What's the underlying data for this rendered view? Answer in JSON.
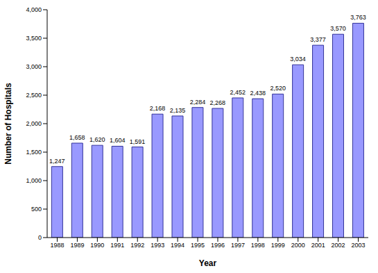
{
  "chart_data": {
    "type": "bar",
    "x_label": "Year",
    "y_label": "Number of Hospitals",
    "categories": [
      "1988",
      "1989",
      "1990",
      "1991",
      "1992",
      "1993",
      "1994",
      "1995",
      "1996",
      "1997",
      "1998",
      "1999",
      "2000",
      "2001",
      "2002",
      "2003"
    ],
    "values": [
      1247,
      1658,
      1620,
      1604,
      1591,
      2168,
      2135,
      2284,
      2268,
      2452,
      2438,
      2520,
      3034,
      3377,
      3570,
      3763
    ],
    "value_labels": [
      "1,247",
      "1,658",
      "1,620",
      "1,604",
      "1,591",
      "2,168",
      "2,135",
      "2,284",
      "2,268",
      "2,452",
      "2,438",
      "2,520",
      "3,034",
      "3,377",
      "3,570",
      "3,763"
    ],
    "color": "#9999ff",
    "ylim": [
      0,
      4000
    ],
    "yticks": [
      0,
      500,
      {
        "value": 1000,
        "label": "1,000"
      },
      {
        "value": 1500,
        "label": "1,500"
      },
      {
        "value": 2000,
        "label": "2,000"
      },
      {
        "value": 2500,
        "label": "2,500"
      },
      {
        "value": 3000,
        "label": "3,000"
      },
      {
        "value": 3500,
        "label": "3,500"
      },
      {
        "value": 4000,
        "label": "4,000"
      }
    ],
    "grid": false,
    "data_labels": true
  }
}
